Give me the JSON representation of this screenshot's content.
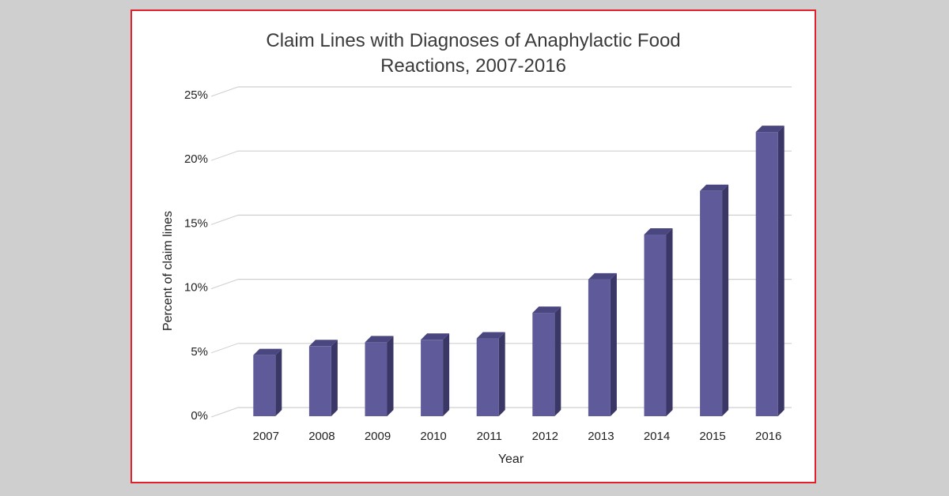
{
  "chart_data": {
    "type": "bar",
    "title": [
      "Claim Lines with Diagnoses of Anaphylactic Food",
      "Reactions, 2007-2016"
    ],
    "xlabel": "Year",
    "ylabel": "Percent of claim lines",
    "categories": [
      "2007",
      "2008",
      "2009",
      "2010",
      "2011",
      "2012",
      "2013",
      "2014",
      "2015",
      "2016"
    ],
    "values": [
      4.7,
      5.4,
      5.7,
      5.9,
      6.0,
      8.0,
      10.6,
      14.1,
      17.5,
      22.1
    ],
    "ylim": [
      0,
      25
    ],
    "yticks": [
      0,
      5,
      10,
      15,
      20,
      25
    ],
    "ytick_labels": [
      "0%",
      "5%",
      "10%",
      "15%",
      "20%",
      "25%"
    ],
    "grid": true,
    "legend": false,
    "style": "3d-bar"
  },
  "colors": {
    "bar_front": "#5f5b9a",
    "bar_side": "#3a3766",
    "bar_top": "#4a4680",
    "grid": "#cfcfcf",
    "frame_border": "#e0202a",
    "background": "#cfcfcf"
  }
}
